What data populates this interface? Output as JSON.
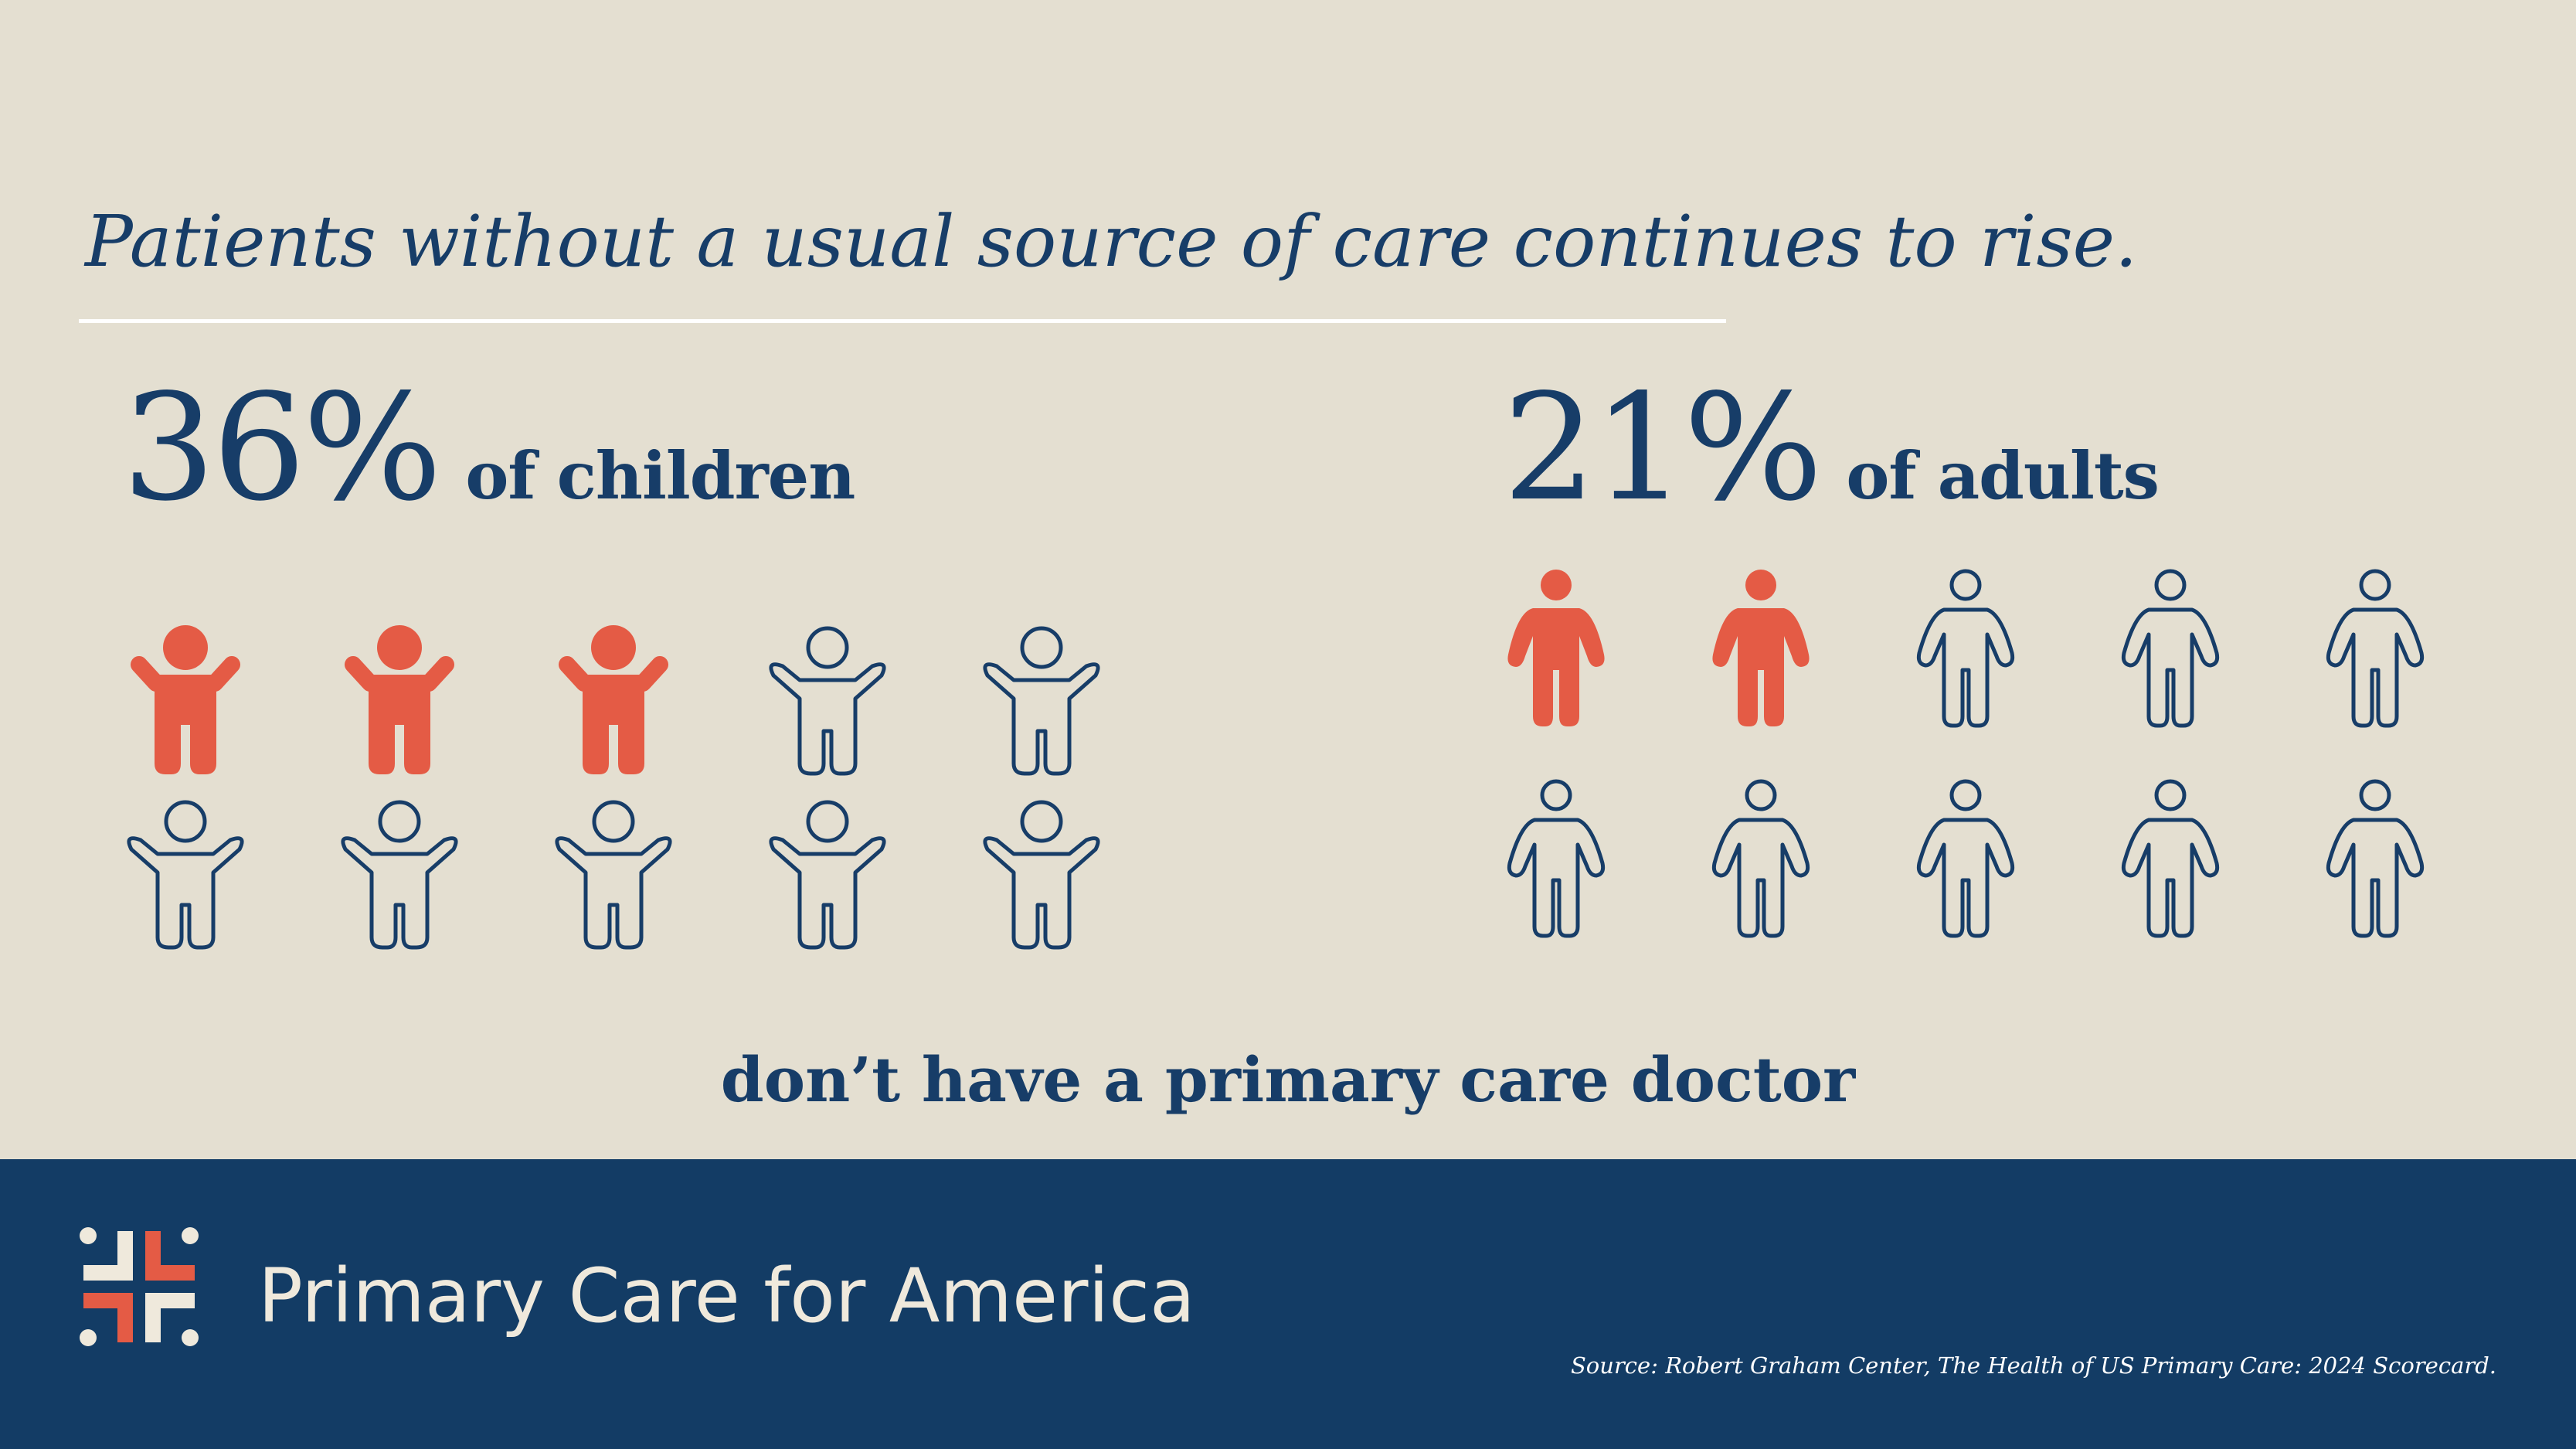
{
  "colors": {
    "background": "#e4dfd1",
    "navy": "#173d68",
    "highlight": "#e45b45",
    "footer": "#133c65",
    "brand_text": "#efe9dc"
  },
  "headline": "Patients without a usual source of care continues to rise.",
  "footnote": "don’t have a primary care doctor",
  "chart_data": [
    {
      "type": "pictogram",
      "value_label": "36%",
      "group_label": "of children",
      "value_percent": 36,
      "icon": "child-arms-raised-icon",
      "total_icons": 10,
      "highlighted_icons": 3
    },
    {
      "type": "pictogram",
      "value_label": "21%",
      "group_label": "of adults",
      "value_percent": 21,
      "icon": "adult-person-icon",
      "total_icons": 10,
      "highlighted_icons": 2
    }
  ],
  "footer": {
    "logo_icon": "primary-care-cross-icon",
    "brand_name": "Primary Care for America",
    "source": "Source: Robert Graham Center, The  Health of US Primary Care: 2024 Scorecard."
  }
}
